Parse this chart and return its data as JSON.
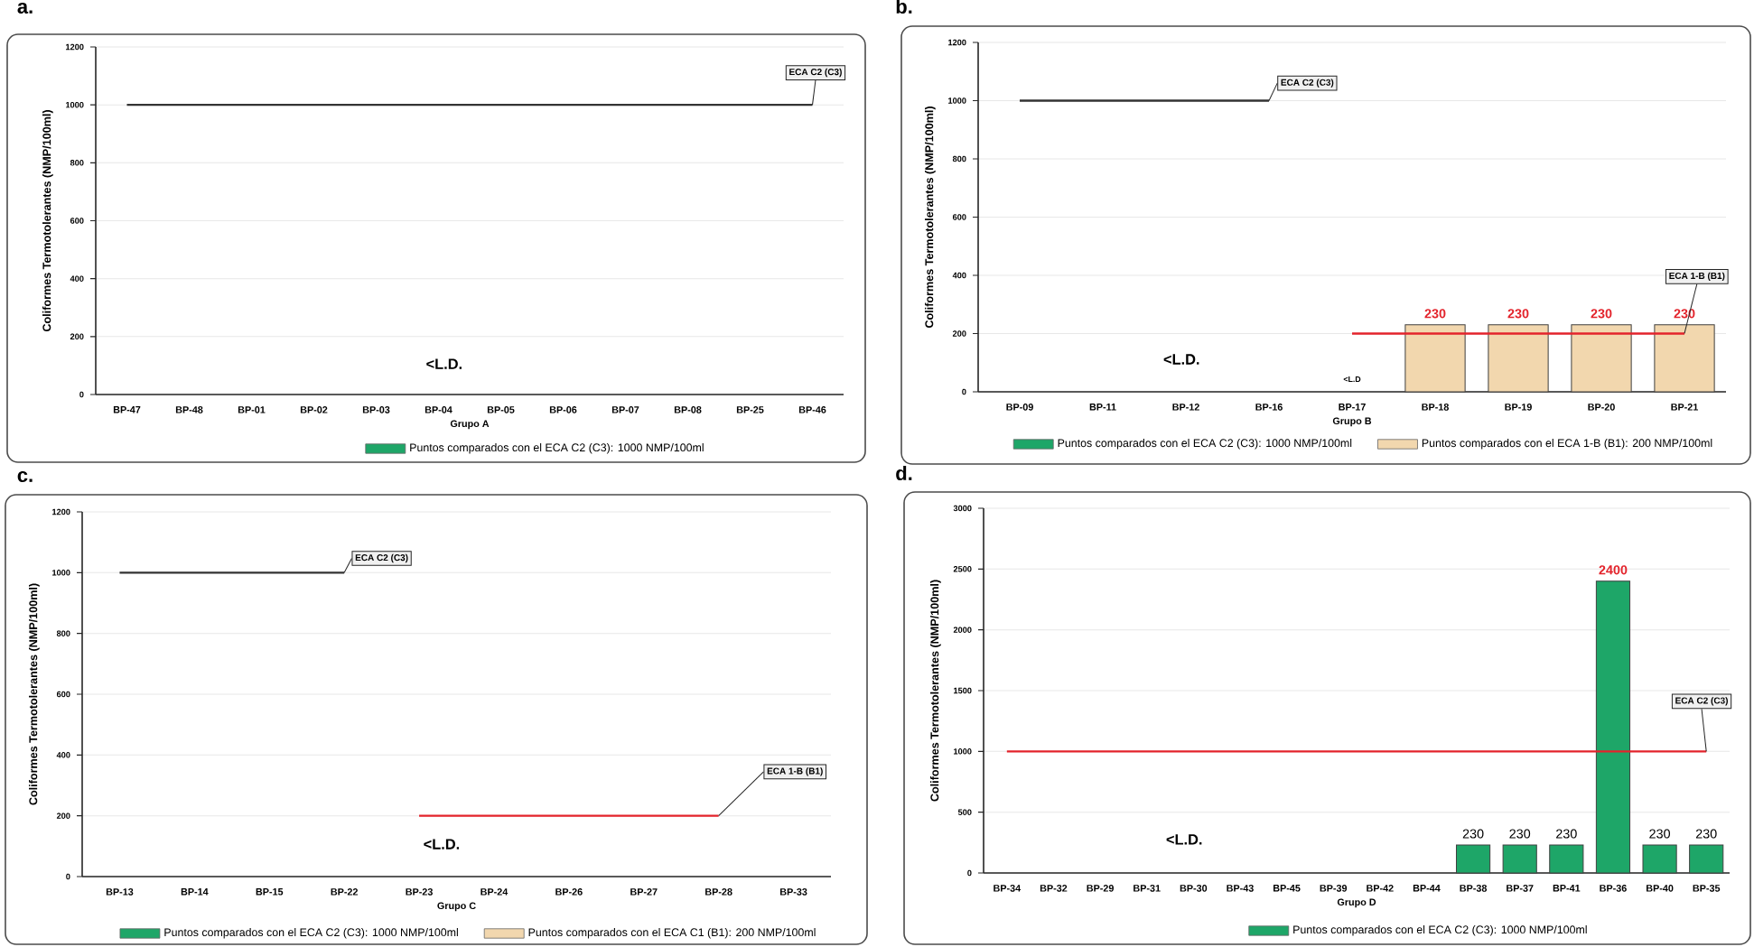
{
  "chart_data": [
    {
      "type": "bar",
      "title": "a.",
      "xlabel": "Grupo A",
      "ylabel": "Coliformes Termotolerantes (NMP/100ml)",
      "categories": [
        "BP-47",
        "BP-48",
        "BP-01",
        "BP-02",
        "BP-03",
        "BP-04",
        "BP-05",
        "BP-06",
        "BP-07",
        "BP-08",
        "BP-25",
        "BP-46"
      ],
      "series": [
        {
          "name": "Puntos comparados con el ECA C2 (C3): 1000 NMP/100ml",
          "color": "#1ea668",
          "values": [
            null,
            null,
            null,
            null,
            null,
            null,
            null,
            null,
            null,
            null,
            null,
            null
          ]
        },
        {
          "type": "line",
          "color": "#333333",
          "values": [
            1000,
            1000,
            1000,
            1000,
            1000,
            1000,
            1000,
            1000,
            1000,
            1000,
            1000,
            1000
          ]
        }
      ],
      "ylim": [
        0,
        1200
      ],
      "yticks": [
        0,
        200,
        400,
        600,
        800,
        1000,
        1200
      ],
      "grid": "y",
      "legend": "bottom",
      "annotations": [
        "<L.D.",
        {
          "text": "ECA C2 (C3)",
          "x": "BP-46",
          "y": 1000
        }
      ]
    },
    {
      "type": "bar",
      "title": "b.",
      "xlabel": "Grupo B",
      "ylabel": "Coliformes Termotolerantes (NMP/100ml)",
      "categories": [
        "BP-09",
        "BP-11",
        "BP-12",
        "BP-16",
        "BP-17",
        "BP-18",
        "BP-19",
        "BP-20",
        "BP-21"
      ],
      "series": [
        {
          "name": "Puntos comparados con el ECA C2 (C3): 1000 NMP/100ml",
          "color": "#1ea668",
          "values": [
            null,
            null,
            null,
            null,
            null,
            null,
            null,
            null,
            null
          ]
        },
        {
          "name": "Puntos comparados con el ECA 1-B (B1): 200 NMP/100ml",
          "color": "#f2d7ae",
          "values": [
            null,
            null,
            null,
            null,
            null,
            230,
            230,
            230,
            230
          ],
          "value_labels": [
            null,
            null,
            null,
            null,
            null,
            "230",
            "230",
            "230",
            "230"
          ]
        },
        {
          "type": "line",
          "color": "#333333",
          "values": [
            1000,
            1000,
            1000,
            1000,
            null,
            null,
            null,
            null,
            null
          ]
        },
        {
          "type": "line",
          "color": "#e3232b",
          "values": [
            null,
            null,
            null,
            null,
            200,
            200,
            200,
            200,
            200
          ]
        }
      ],
      "ylim": [
        0,
        1200
      ],
      "yticks": [
        0,
        200,
        400,
        600,
        800,
        1000,
        1200
      ],
      "grid": "y",
      "legend": "bottom",
      "annotations": [
        "<L.D.",
        "<L.D",
        {
          "text": "ECA C2 (C3)",
          "x": "BP-16",
          "y": 1000
        },
        {
          "text": "ECA 1-B (B1)",
          "x": "BP-21",
          "y": 200
        }
      ]
    },
    {
      "type": "bar",
      "title": "c.",
      "xlabel": "Grupo C",
      "ylabel": "Coliformes Termotolerantes (NMP/100ml)",
      "categories": [
        "BP-13",
        "BP-14",
        "BP-15",
        "BP-22",
        "BP-23",
        "BP-24",
        "BP-26",
        "BP-27",
        "BP-28",
        "BP-33"
      ],
      "series": [
        {
          "name": "Puntos comparados con el ECA C2 (C3): 1000 NMP/100ml",
          "color": "#1ea668",
          "values": [
            null,
            null,
            null,
            null,
            null,
            null,
            null,
            null,
            null,
            null
          ]
        },
        {
          "name": "Puntos comparados con el ECA C1 (B1): 200 NMP/100ml",
          "color": "#f2d7ae",
          "values": [
            null,
            null,
            null,
            null,
            null,
            null,
            null,
            null,
            null,
            null
          ]
        },
        {
          "type": "line",
          "color": "#333333",
          "values": [
            1000,
            1000,
            1000,
            1000,
            null,
            null,
            null,
            null,
            null,
            null
          ]
        },
        {
          "type": "line",
          "color": "#e3232b",
          "values": [
            null,
            null,
            null,
            null,
            200,
            200,
            200,
            200,
            200,
            null
          ]
        }
      ],
      "ylim": [
        0,
        1200
      ],
      "yticks": [
        0,
        200,
        400,
        600,
        800,
        1000,
        1200
      ],
      "grid": "y",
      "legend": "bottom",
      "annotations": [
        "<L.D.",
        {
          "text": "ECA C2 (C3)",
          "x": "BP-22",
          "y": 1000
        },
        {
          "text": "ECA 1-B (B1)",
          "x": "BP-28",
          "y": 200
        }
      ]
    },
    {
      "type": "bar",
      "title": "d.",
      "xlabel": "Grupo D",
      "ylabel": "Coliformes Termotolerantes (NMP/100ml)",
      "categories": [
        "BP-34",
        "BP-32",
        "BP-29",
        "BP-31",
        "BP-30",
        "BP-43",
        "BP-45",
        "BP-39",
        "BP-42",
        "BP-44",
        "BP-38",
        "BP-37",
        "BP-41",
        "BP-36",
        "BP-40",
        "BP-35"
      ],
      "series": [
        {
          "name": "Puntos comparados con el ECA C2 (C3): 1000 NMP/100ml",
          "color": "#1ea668",
          "values": [
            null,
            null,
            null,
            null,
            null,
            null,
            null,
            null,
            null,
            null,
            230,
            230,
            230,
            2400,
            230,
            230
          ],
          "value_labels": [
            null,
            null,
            null,
            null,
            null,
            null,
            null,
            null,
            null,
            null,
            "230",
            "230",
            "230",
            "2400",
            "230",
            "230"
          ]
        },
        {
          "type": "line",
          "color": "#e3232b",
          "values": [
            1000,
            1000,
            1000,
            1000,
            1000,
            1000,
            1000,
            1000,
            1000,
            1000,
            1000,
            1000,
            1000,
            1000,
            1000,
            1000
          ]
        }
      ],
      "ylim": [
        0,
        3000
      ],
      "yticks": [
        0,
        500,
        1000,
        1500,
        2000,
        2500,
        3000
      ],
      "grid": "y",
      "legend": "bottom",
      "annotations": [
        "<L.D.",
        {
          "text": "ECA C2 (C3)",
          "x": "BP-35",
          "y": 1000
        }
      ]
    }
  ]
}
